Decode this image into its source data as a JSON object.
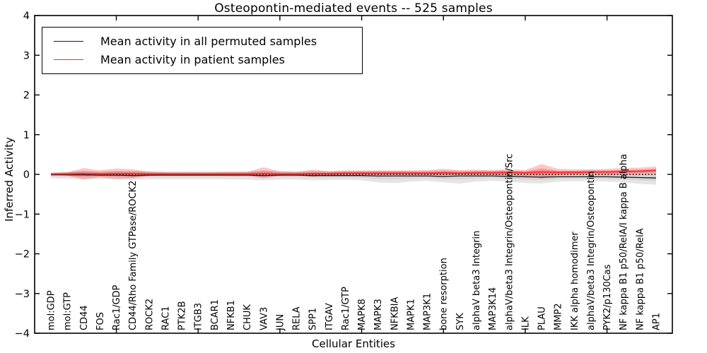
{
  "chart_data": {
    "type": "line",
    "title": "Osteopontin-mediated events -- 525 samples",
    "xlabel": "Cellular Entities",
    "ylabel": "Inferred Activity",
    "ylim": [
      -4,
      4
    ],
    "ytick_labels": [
      "4",
      "3",
      "2",
      "1",
      "0",
      "−1",
      "−2",
      "−3",
      "−4"
    ],
    "ytick_values": [
      4,
      3,
      2,
      1,
      0,
      -1,
      -2,
      -3,
      -4
    ],
    "grid": false,
    "legend_position": "upper left",
    "legend": [
      {
        "label": "Mean activity in all permuted samples",
        "color": "#1a1a1a"
      },
      {
        "label": "Mean activity in patient samples",
        "color": "#ff2a2a"
      }
    ],
    "zero_line": {
      "value": 0,
      "style": "dotted",
      "color": "#000000"
    },
    "colors": {
      "permuted_line": "#1a1a1a",
      "permuted_band": "rgba(0,0,0,0.10)",
      "permuted_band_inner": "rgba(0,0,0,0.07)",
      "patient_line": "#ff2a2a",
      "patient_band": "rgba(255,45,45,0.27)",
      "patient_band_inner": "rgba(240,30,30,0.28)",
      "frame": "#000000",
      "background": "#ffffff"
    },
    "categories": [
      "mol:GDP",
      "mol:GTP",
      "CD44",
      "FOS",
      "Rac1/GDP",
      "CD44/Rho Family GTPase/ROCK2",
      "ROCK2",
      "RAC1",
      "PTK2B",
      "ITGB3",
      "BCAR1",
      "NFKB1",
      "CHUK",
      "VAV3",
      "JUN",
      "RELA",
      "SPP1",
      "ITGAV",
      "Rac1/GTP",
      "MAPK8",
      "MAPK3",
      "NFKBIA",
      "MAPK1",
      "MAP3K1",
      "bone resorption",
      "SYK",
      "alphaV beta3 Integrin",
      "MAP3K14",
      "alphaV/beta3 Integrin/Osteopontin/Src",
      "ILK",
      "PLAU",
      "MMP2",
      "IKK alpha homodimer",
      "alphaV/beta3 Integrin/Osteopontin",
      "PYK2/p130Cas",
      "NF kappa B1 p50/RelA/I kappa B alpha",
      "NF kappa B1 p50/RelA",
      "AP1"
    ],
    "xtick_marks_at_values": [
      5,
      10,
      15,
      20,
      25,
      30,
      35
    ],
    "series": [
      {
        "name": "Mean activity in all permuted samples",
        "mean": [
          -0.01,
          -0.01,
          -0.01,
          -0.02,
          -0.02,
          -0.03,
          -0.02,
          -0.02,
          -0.02,
          -0.02,
          -0.02,
          -0.02,
          -0.02,
          -0.03,
          -0.02,
          -0.02,
          -0.03,
          -0.03,
          -0.03,
          -0.03,
          -0.04,
          -0.04,
          -0.04,
          -0.04,
          -0.05,
          -0.04,
          -0.04,
          -0.04,
          -0.05,
          -0.06,
          -0.07,
          -0.06,
          -0.06,
          -0.06,
          -0.06,
          -0.07,
          -0.08,
          -0.09
        ],
        "upper": [
          0.06,
          0.07,
          0.08,
          0.08,
          0.08,
          0.09,
          0.08,
          0.08,
          0.08,
          0.08,
          0.08,
          0.08,
          0.08,
          0.09,
          0.08,
          0.08,
          0.09,
          0.08,
          0.08,
          0.08,
          0.09,
          0.09,
          0.09,
          0.09,
          0.1,
          0.09,
          0.09,
          0.09,
          0.1,
          0.08,
          0.1,
          0.09,
          0.09,
          0.09,
          0.09,
          0.1,
          0.1,
          0.11
        ],
        "lower": [
          -0.1,
          -0.11,
          -0.12,
          -0.12,
          -0.12,
          -0.14,
          -0.12,
          -0.12,
          -0.12,
          -0.12,
          -0.12,
          -0.13,
          -0.13,
          -0.15,
          -0.13,
          -0.13,
          -0.15,
          -0.14,
          -0.14,
          -0.15,
          -0.2,
          -0.22,
          -0.18,
          -0.16,
          -0.2,
          -0.23,
          -0.18,
          -0.16,
          -0.18,
          -0.22,
          -0.23,
          -0.18,
          -0.17,
          -0.17,
          -0.18,
          -0.2,
          -0.24,
          -0.26
        ]
      },
      {
        "name": "Mean activity in patient samples",
        "mean": [
          0.01,
          0.01,
          0.02,
          0.01,
          0.02,
          0.02,
          0.01,
          0.01,
          0.01,
          0.01,
          0.01,
          0.01,
          0.01,
          0.02,
          0.01,
          0.01,
          0.02,
          0.02,
          0.03,
          0.03,
          0.03,
          0.03,
          0.03,
          0.03,
          0.04,
          0.03,
          0.04,
          0.04,
          0.05,
          0.04,
          0.06,
          0.05,
          0.05,
          0.06,
          0.06,
          0.07,
          0.08,
          0.1
        ],
        "upper": [
          0.03,
          0.05,
          0.16,
          0.1,
          0.15,
          0.13,
          0.07,
          0.05,
          0.05,
          0.05,
          0.05,
          0.06,
          0.06,
          0.18,
          0.08,
          0.06,
          0.12,
          0.08,
          0.1,
          0.1,
          0.1,
          0.1,
          0.1,
          0.11,
          0.14,
          0.11,
          0.12,
          0.11,
          0.13,
          0.11,
          0.26,
          0.14,
          0.13,
          0.13,
          0.14,
          0.16,
          0.17,
          0.2
        ],
        "lower": [
          -0.01,
          -0.03,
          -0.13,
          -0.07,
          -0.12,
          -0.1,
          -0.04,
          -0.02,
          -0.02,
          -0.02,
          -0.02,
          -0.02,
          -0.02,
          -0.1,
          -0.03,
          -0.02,
          -0.06,
          -0.02,
          -0.01,
          -0.01,
          -0.01,
          -0.01,
          -0.01,
          -0.01,
          -0.02,
          -0.01,
          -0.01,
          -0.01,
          -0.02,
          -0.05,
          -0.1,
          -0.02,
          -0.01,
          -0.01,
          -0.02,
          -0.02,
          -0.01,
          0.0
        ]
      }
    ]
  }
}
